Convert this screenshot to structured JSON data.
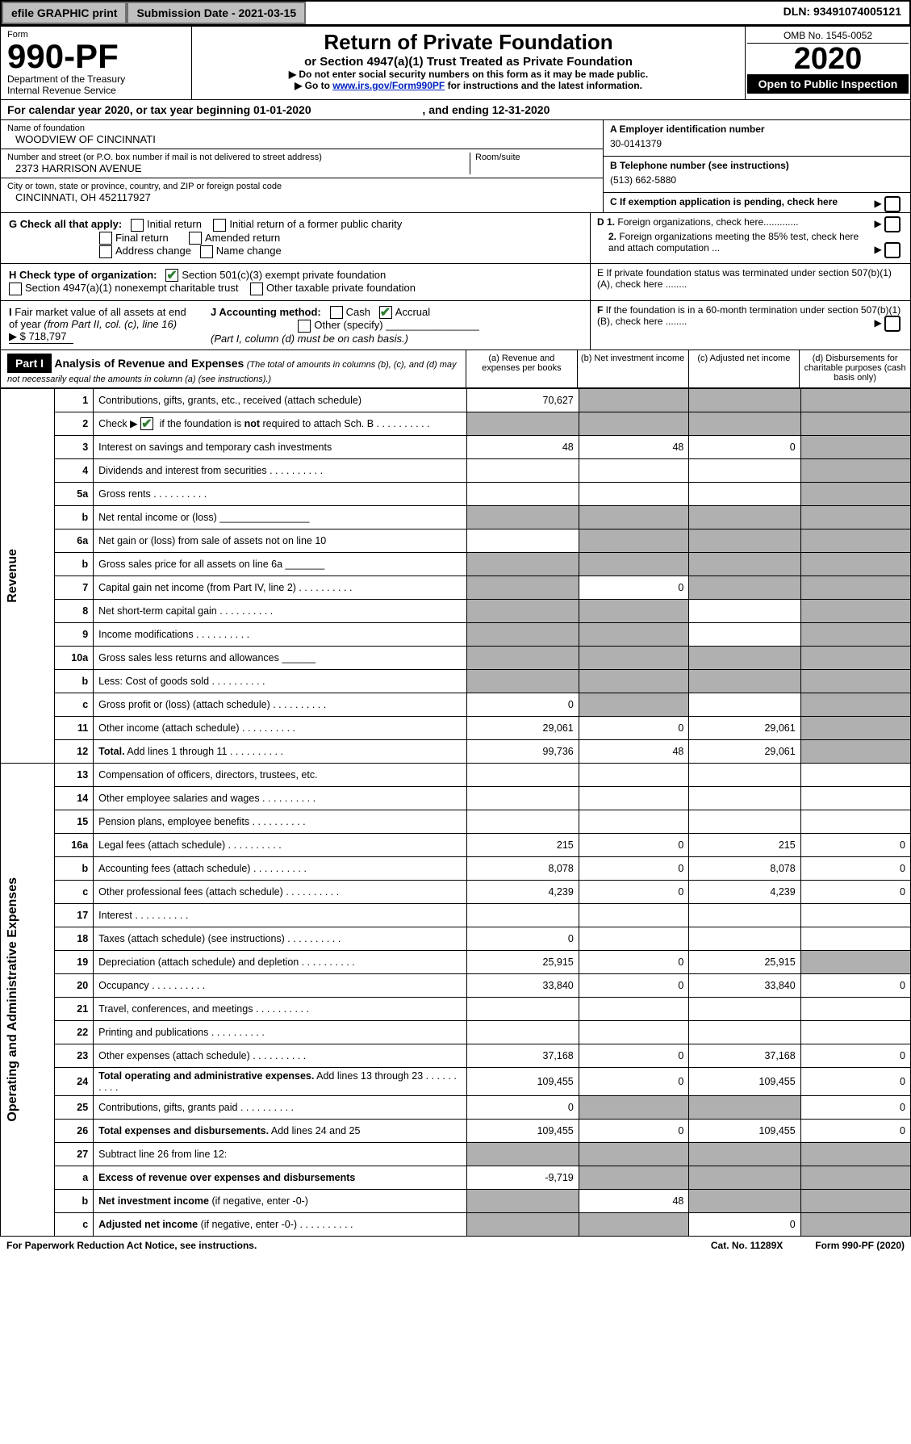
{
  "top": {
    "efile": "efile GRAPHIC print",
    "sub": "Submission Date - 2021-03-15",
    "dln": "DLN: 93491074005121"
  },
  "header": {
    "form_lbl": "Form",
    "form_no": "990-PF",
    "dept": "Department of the Treasury",
    "irs": "Internal Revenue Service",
    "title": "Return of Private Foundation",
    "sub": "or Section 4947(a)(1) Trust Treated as Private Foundation",
    "instr1": "▶ Do not enter social security numbers on this form as it may be made public.",
    "instr2": "▶ Go to <a href='#'>www.irs.gov/Form990PF</a> for instructions and the latest information.",
    "omb": "OMB No. 1545-0052",
    "year": "2020",
    "open": "Open to Public Inspection"
  },
  "cal": {
    "pre": "For calendar year 2020, or tax year beginning 01-01-2020",
    "end": ", and ending 12-31-2020"
  },
  "ident": {
    "name_lbl": "Name of foundation",
    "name": "WOODVIEW OF CINCINNATI",
    "addr_lbl": "Number and street (or P.O. box number if mail is not delivered to street address)",
    "addr": "2373 HARRISON AVENUE",
    "room_lbl": "Room/suite",
    "city_lbl": "City or town, state or province, country, and ZIP or foreign postal code",
    "city": "CINCINNATI, OH  452117927",
    "a_lbl": "A Employer identification number",
    "ein": "30-0141379",
    "b_lbl": "B Telephone number (see instructions)",
    "phone": "(513) 662-5880",
    "c_lbl": "C If exemption application is pending, check here"
  },
  "checks": {
    "g": "G Check all that apply:",
    "g_opts": [
      "Initial return",
      "Initial return of a former public charity",
      "Final return",
      "Amended return",
      "Address change",
      "Name change"
    ],
    "h": "H Check type of organization:",
    "h1": "Section 501(c)(3) exempt private foundation",
    "h2": "Section 4947(a)(1) nonexempt charitable trust",
    "h3": "Other taxable private foundation",
    "i": "I Fair market value of all assets at end of year (from Part II, col. (c), line 16)",
    "i_val": "▶ $  718,797",
    "j": "J Accounting method:",
    "j_cash": "Cash",
    "j_acc": "Accrual",
    "j_other": "Other (specify)",
    "j_note": "(Part I, column (d) must be on cash basis.)",
    "d1": "D 1. Foreign organizations, check here.............",
    "d2": "2. Foreign organizations meeting the 85% test, check here and attach computation ...",
    "e": "E  If private foundation status was terminated under section 507(b)(1)(A), check here ........",
    "f": "F  If the foundation is in a 60-month termination under section 507(b)(1)(B), check here ........"
  },
  "part1": {
    "tag": "Part I",
    "title": "Analysis of Revenue and Expenses",
    "note": "(The total of amounts in columns (b), (c), and (d) may not necessarily equal the amounts in column (a) (see instructions).)",
    "cols": [
      "(a)  Revenue and expenses per books",
      "(b)  Net investment income",
      "(c)  Adjusted net income",
      "(d)  Disbursements for charitable purposes (cash basis only)"
    ]
  },
  "revenue_label": "Revenue",
  "expense_label": "Operating and Administrative Expenses",
  "rows_rev": [
    {
      "n": "1",
      "d": "Contributions, gifts, grants, etc., received (attach schedule)",
      "a": "70,627",
      "b_g": 1,
      "c_g": 1,
      "d_g": 1
    },
    {
      "n": "2",
      "d": "Check ▶ <span class='ckbox checked'></span> if the foundation is <b>not</b> required to attach Sch. B",
      "dots": 1,
      "a_g": 1,
      "b_g": 1,
      "c_g": 1,
      "d_g": 1
    },
    {
      "n": "3",
      "d": "Interest on savings and temporary cash investments",
      "a": "48",
      "b": "48",
      "c": "0",
      "d_g": 1
    },
    {
      "n": "4",
      "d": "Dividends and interest from securities",
      "dots": 1,
      "d_g": 1
    },
    {
      "n": "5a",
      "d": "Gross rents",
      "dots": 1,
      "d_g": 1
    },
    {
      "n": "b",
      "d": "Net rental income or (loss) ________________",
      "a_g": 1,
      "b_g": 1,
      "c_g": 1,
      "d_g": 1
    },
    {
      "n": "6a",
      "d": "Net gain or (loss) from sale of assets not on line 10",
      "b_g": 1,
      "c_g": 1,
      "d_g": 1
    },
    {
      "n": "b",
      "d": "Gross sales price for all assets on line 6a _______",
      "a_g": 1,
      "b_g": 1,
      "c_g": 1,
      "d_g": 1
    },
    {
      "n": "7",
      "d": "Capital gain net income (from Part IV, line 2)",
      "dots": 1,
      "a_g": 1,
      "b": "0",
      "c_g": 1,
      "d_g": 1
    },
    {
      "n": "8",
      "d": "Net short-term capital gain",
      "dots": 1,
      "a_g": 1,
      "b_g": 1,
      "d_g": 1
    },
    {
      "n": "9",
      "d": "Income modifications",
      "dots": 1,
      "a_g": 1,
      "b_g": 1,
      "d_g": 1
    },
    {
      "n": "10a",
      "d": "Gross sales less returns and allowances  ______",
      "a_g": 1,
      "b_g": 1,
      "c_g": 1,
      "d_g": 1
    },
    {
      "n": "b",
      "d": "Less: Cost of goods sold",
      "dots": 1,
      "extra": "______",
      "a_g": 1,
      "b_g": 1,
      "c_g": 1,
      "d_g": 1
    },
    {
      "n": "c",
      "d": "Gross profit or (loss) (attach schedule)",
      "dots": 1,
      "a": "0",
      "b_g": 1,
      "d_g": 1
    },
    {
      "n": "11",
      "d": "Other income (attach schedule)",
      "dots": 1,
      "a": "29,061",
      "b": "0",
      "c": "29,061",
      "d_g": 1
    },
    {
      "n": "12",
      "d": "<b>Total.</b> Add lines 1 through 11",
      "dots": 1,
      "a": "99,736",
      "b": "48",
      "c": "29,061",
      "d_g": 1
    }
  ],
  "rows_exp": [
    {
      "n": "13",
      "d": "Compensation of officers, directors, trustees, etc."
    },
    {
      "n": "14",
      "d": "Other employee salaries and wages",
      "dots": 1
    },
    {
      "n": "15",
      "d": "Pension plans, employee benefits",
      "dots": 1
    },
    {
      "n": "16a",
      "d": "Legal fees (attach schedule)",
      "dots": 1,
      "a": "215",
      "b": "0",
      "c": "215",
      "e": "0"
    },
    {
      "n": "b",
      "d": "Accounting fees (attach schedule)",
      "dots": 1,
      "a": "8,078",
      "b": "0",
      "c": "8,078",
      "e": "0"
    },
    {
      "n": "c",
      "d": "Other professional fees (attach schedule)",
      "dots": 1,
      "a": "4,239",
      "b": "0",
      "c": "4,239",
      "e": "0"
    },
    {
      "n": "17",
      "d": "Interest",
      "dots": 1
    },
    {
      "n": "18",
      "d": "Taxes (attach schedule) (see instructions)",
      "dots": 1,
      "a": "0"
    },
    {
      "n": "19",
      "d": "Depreciation (attach schedule) and depletion",
      "dots": 1,
      "a": "25,915",
      "b": "0",
      "c": "25,915",
      "d_g": 1
    },
    {
      "n": "20",
      "d": "Occupancy",
      "dots": 1,
      "a": "33,840",
      "b": "0",
      "c": "33,840",
      "e": "0"
    },
    {
      "n": "21",
      "d": "Travel, conferences, and meetings",
      "dots": 1
    },
    {
      "n": "22",
      "d": "Printing and publications",
      "dots": 1
    },
    {
      "n": "23",
      "d": "Other expenses (attach schedule)",
      "dots": 1,
      "a": "37,168",
      "b": "0",
      "c": "37,168",
      "e": "0"
    },
    {
      "n": "24",
      "d": "<b>Total operating and administrative expenses.</b> Add lines 13 through 23",
      "dots": 1,
      "a": "109,455",
      "b": "0",
      "c": "109,455",
      "e": "0"
    },
    {
      "n": "25",
      "d": "Contributions, gifts, grants paid",
      "dots": 1,
      "a": "0",
      "b_g": 1,
      "c_g": 1,
      "e": "0"
    },
    {
      "n": "26",
      "d": "<b>Total expenses and disbursements.</b> Add lines 24 and 25",
      "a": "109,455",
      "b": "0",
      "c": "109,455",
      "e": "0"
    },
    {
      "n": "27",
      "d": "Subtract line 26 from line 12:",
      "a_g": 1,
      "b_g": 1,
      "c_g": 1,
      "d_g": 1
    },
    {
      "n": "a",
      "d": "<b>Excess of revenue over expenses and disbursements</b>",
      "a": "-9,719",
      "b_g": 1,
      "c_g": 1,
      "d_g": 1
    },
    {
      "n": "b",
      "d": "<b>Net investment income</b> (if negative, enter -0-)",
      "a_g": 1,
      "b": "48",
      "c_g": 1,
      "d_g": 1
    },
    {
      "n": "c",
      "d": "<b>Adjusted net income</b> (if negative, enter -0-)",
      "dots": 1,
      "a_g": 1,
      "b_g": 1,
      "c": "0",
      "d_g": 1
    }
  ],
  "footer": {
    "left": "For Paperwork Reduction Act Notice, see instructions.",
    "mid": "Cat. No. 11289X",
    "right": "Form 990-PF (2020)"
  }
}
